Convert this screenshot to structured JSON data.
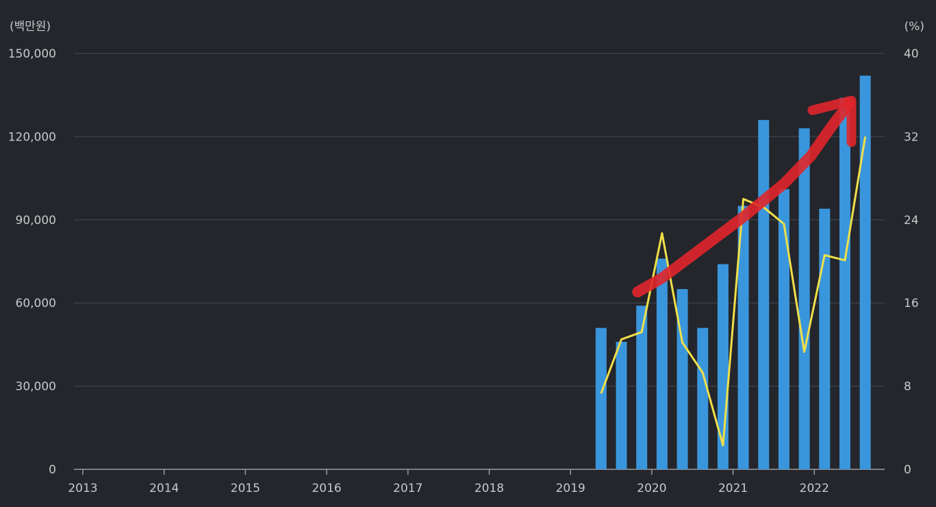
{
  "chart_data": {
    "type": "bar",
    "left_unit": "(백만원)",
    "right_unit": "(%)",
    "left_ylim": [
      0,
      150000
    ],
    "right_ylim": [
      0,
      40
    ],
    "left_ticks": [
      0,
      30000,
      60000,
      90000,
      120000,
      150000
    ],
    "right_ticks": [
      0,
      8,
      16,
      24,
      32,
      40
    ],
    "left_tick_labels": [
      "0",
      "30,000",
      "60,000",
      "90,000",
      "120,000",
      "150,000"
    ],
    "right_tick_labels": [
      "0",
      "8",
      "16",
      "24",
      "32",
      "40"
    ],
    "x_tick_labels": [
      "2013",
      "2014",
      "2015",
      "2016",
      "2017",
      "2018",
      "2019",
      "2020",
      "2021",
      "2022"
    ],
    "grid": true,
    "series": [
      {
        "type": "bar",
        "axis": "left",
        "color": "#3a96dc",
        "points": [
          {
            "x": "2019.25",
            "value": 51000
          },
          {
            "x": "2019.5",
            "value": 46000
          },
          {
            "x": "2019.75",
            "value": 59000
          },
          {
            "x": "2020.0",
            "value": 76000
          },
          {
            "x": "2020.25",
            "value": 65000
          },
          {
            "x": "2020.5",
            "value": 51000
          },
          {
            "x": "2020.75",
            "value": 74000
          },
          {
            "x": "2021.0",
            "value": 95000
          },
          {
            "x": "2021.25",
            "value": 126000
          },
          {
            "x": "2021.5",
            "value": 101000
          },
          {
            "x": "2021.75",
            "value": 123000
          },
          {
            "x": "2022.0",
            "value": 94000
          },
          {
            "x": "2022.25",
            "value": 134000
          },
          {
            "x": "2022.5",
            "value": 142000
          }
        ]
      },
      {
        "type": "line",
        "axis": "right",
        "color": "#f0e04a",
        "points": [
          {
            "x": "2019.25",
            "value": 7.3
          },
          {
            "x": "2019.5",
            "value": 12.5
          },
          {
            "x": "2019.75",
            "value": 13.2
          },
          {
            "x": "2020.0",
            "value": 22.7
          },
          {
            "x": "2020.25",
            "value": 12.2
          },
          {
            "x": "2020.5",
            "value": 9.3
          },
          {
            "x": "2020.75",
            "value": 2.3
          },
          {
            "x": "2021.0",
            "value": 26.0
          },
          {
            "x": "2021.25",
            "value": 25.2
          },
          {
            "x": "2021.5",
            "value": 23.6
          },
          {
            "x": "2021.75",
            "value": 11.3
          },
          {
            "x": "2022.0",
            "value": 20.6
          },
          {
            "x": "2022.25",
            "value": 20.1
          },
          {
            "x": "2022.5",
            "value": 32.0
          }
        ]
      }
    ],
    "annotation": {
      "type": "hand-drawn arrow",
      "color": "#e0262b",
      "points": [
        {
          "x": "2019.7",
          "value": 64000
        },
        {
          "x": "2020.0",
          "value": 69000
        },
        {
          "x": "2020.5",
          "value": 80000
        },
        {
          "x": "2021.0",
          "value": 91000
        },
        {
          "x": "2021.5",
          "value": 103000
        },
        {
          "x": "2021.83",
          "value": 113000
        },
        {
          "x": "2022.07",
          "value": 123000
        },
        {
          "x": "2022.3",
          "value": 132000
        }
      ],
      "head_left": {
        "x": "2021.85",
        "value": 129500
      },
      "head_tip": {
        "x": "2022.33",
        "value": 133000
      },
      "head_right": {
        "x": "2022.33",
        "value": 118000
      }
    }
  }
}
